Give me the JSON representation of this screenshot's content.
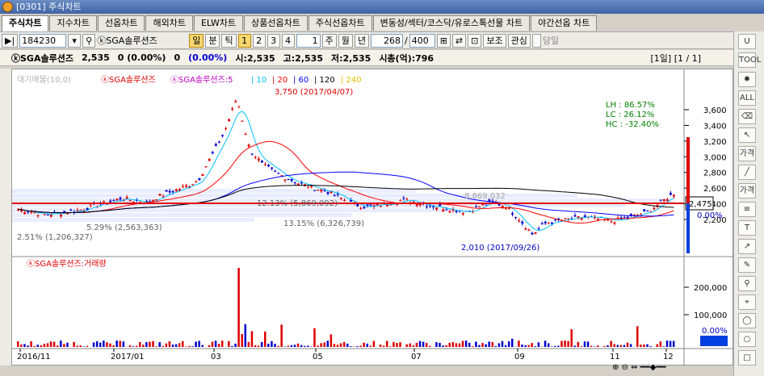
{
  "window": {
    "title": "[0301] 주식차트"
  },
  "tabs": [
    "주식차트",
    "지수차트",
    "선옵차트",
    "해외차트",
    "ELW차트",
    "상품선옵차트",
    "주식선옵차트",
    "변동성/섹터/코스닥/유로스톡선물 차트",
    "야간선옵 차트"
  ],
  "toolbar": {
    "code": "184230",
    "stock_name": "ⓚSGA솔루션즈",
    "periods": [
      "일",
      "분",
      "틱"
    ],
    "period_active": "일",
    "numbers": [
      "1",
      "2",
      "3",
      "4"
    ],
    "number_active": "1",
    "multiplier": "1",
    "range_buttons": [
      "주",
      "월",
      "년"
    ],
    "count": "268",
    "total": "400",
    "aux_button": "보조",
    "watch_button": "관심",
    "today_label": "당일"
  },
  "infobar": {
    "name": "ⓚSGA솔루션즈",
    "price": "2,535",
    "change": "0 (0.00%)",
    "change2": "0",
    "change2_pct": "(0.00%)",
    "open": "시:2,535",
    "high": "고:2,535",
    "low": "저:2,535",
    "mktcap": "시총(억):796",
    "page": "[1일] [1 / 1]"
  },
  "legend": {
    "main": "ⓚSGA솔루션즈",
    "ma_label": "ⓚSGA솔루션즈:5",
    "ma_periods": [
      "10",
      "20",
      "60",
      "120",
      "240"
    ],
    "ma_colors": [
      "#00c0ff",
      "#ff0000",
      "#0000ff",
      "#000000",
      "#e0c000"
    ],
    "faded": "대기매물(10,0)"
  },
  "stats": {
    "lh": "LH :  86.57%",
    "lc": "LC :  26.12%",
    "hc": "HC : -32.40%"
  },
  "annotations": {
    "high": "3,750 (2017/04/07)",
    "low": "2,010 (2017/09/26)",
    "vp1": "12.13% (5,869,092)",
    "vp2": "13.15% (6,326,739)",
    "vp3": "5.29% (2,563,363)",
    "vp4": "2.51% (1,206,327)",
    "vp5": "8,869,032"
  },
  "price_axis": [
    "3,600",
    "3,400",
    "3,200",
    "3,000",
    "2,800",
    "2,600",
    "2,400",
    "2,200"
  ],
  "price_tag": "2,475",
  "price_pct": "0.00%",
  "volume_title": "ⓚSGA솔루션즈:거래량",
  "volume_axis": [
    "200,000",
    "100,000"
  ],
  "volume_pct": "0.00%",
  "x_axis": [
    "2016/11",
    "2017/01",
    "03",
    "05",
    "07",
    "09",
    "11",
    "12"
  ],
  "right_tools": [
    "TOOL",
    "ALL",
    "가격",
    "가격",
    "T"
  ]
}
